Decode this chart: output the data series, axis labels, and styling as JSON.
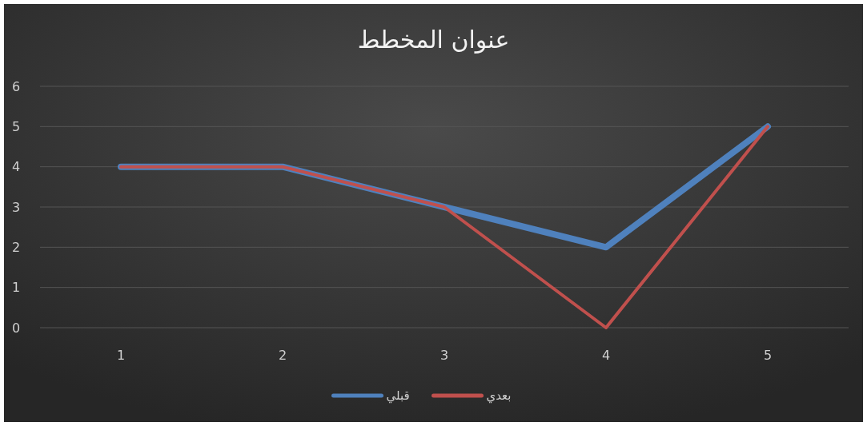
{
  "chart_data": {
    "type": "line",
    "title": "عنوان المخطط",
    "categories": [
      "1",
      "2",
      "3",
      "4",
      "5"
    ],
    "series": [
      {
        "name": "قبلي",
        "color": "#4f81bd",
        "values": [
          4,
          4,
          3,
          2,
          5
        ]
      },
      {
        "name": "بعدي",
        "color": "#c0504d",
        "values": [
          4,
          4,
          3,
          0,
          5
        ]
      }
    ],
    "ylim": [
      0,
      6
    ],
    "yticks": [
      0,
      1,
      2,
      3,
      4,
      5,
      6
    ],
    "grid": "y",
    "legend": "bottom",
    "line_style": "solid",
    "marker": "none"
  }
}
